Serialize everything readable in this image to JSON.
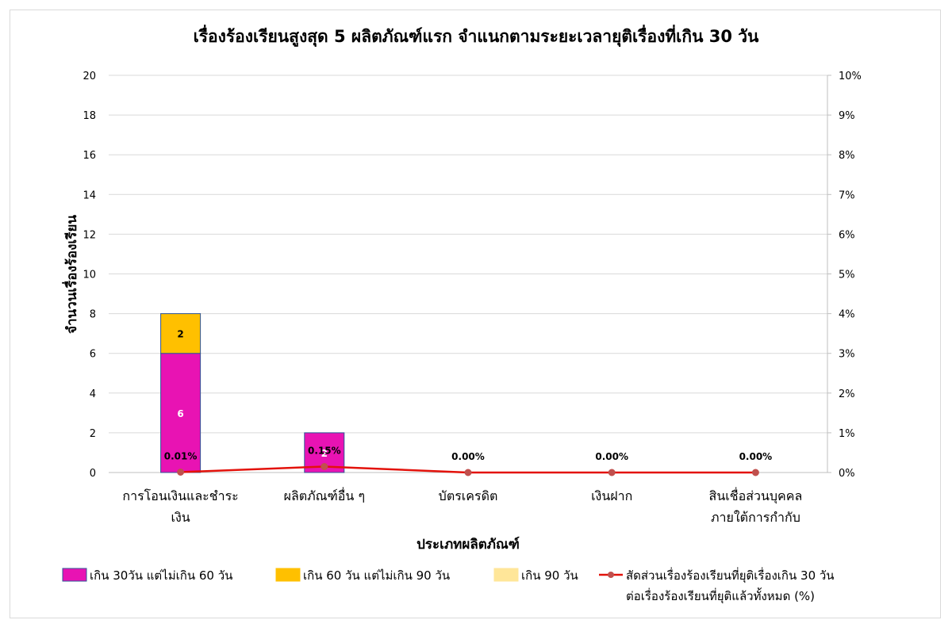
{
  "chart_data": {
    "type": "bar",
    "subtype": "stacked-bar-with-line",
    "title": "เรื่องร้องเรียนสูงสุด 5 ผลิตภัณฑ์แรก จำแนกตามระยะเวลายุติเรื่องที่เกิน 30 วัน",
    "xlabel": "ประเภทผลิตภัณฑ์",
    "ylabel": "จำนวนเรื่องร้องเรียน",
    "ylim": [
      0,
      20
    ],
    "yticks": [
      "0",
      "2",
      "4",
      "6",
      "8",
      "10",
      "12",
      "14",
      "16",
      "18",
      "20"
    ],
    "y2lim": [
      0,
      10
    ],
    "y2ticks": [
      "0%",
      "1%",
      "2%",
      "3%",
      "4%",
      "5%",
      "6%",
      "7%",
      "8%",
      "9%",
      "10%"
    ],
    "grid": true,
    "legend_position": "bottom",
    "categories": [
      [
        "การโอนเงินและชำระ",
        "เงิน"
      ],
      [
        "ผลิตภัณฑ์อื่น ๆ"
      ],
      [
        "บัตรเครดิต"
      ],
      [
        "เงินฝาก"
      ],
      [
        "สินเชื่อส่วนบุคคล",
        "ภายใต้การกำกับ"
      ]
    ],
    "series": [
      {
        "name": "เกิน 30วัน แต่ไม่เกิน 60 วัน",
        "kind": "bar",
        "color": "#e813b3",
        "label_color": "#ffffff",
        "values": [
          6,
          2,
          0,
          0,
          0
        ],
        "labels": [
          "6",
          "2",
          "",
          "",
          ""
        ]
      },
      {
        "name": "เกิน 60 วัน แต่ไม่เกิน 90 วัน",
        "kind": "bar",
        "color": "#ffc000",
        "label_color": "#000000",
        "values": [
          2,
          0,
          0,
          0,
          0
        ],
        "labels": [
          "2",
          "",
          "",
          "",
          ""
        ]
      },
      {
        "name": "เกิน 90 วัน",
        "kind": "bar",
        "color": "#ffe699",
        "label_color": "#000000",
        "values": [
          0,
          0,
          0,
          0,
          0
        ],
        "labels": [
          "",
          "",
          "",
          "",
          ""
        ]
      },
      {
        "name": [
          "สัดส่วนเรื่องร้องเรียนที่ยุติเรื่องเกิน 30 วัน",
          "ต่อเรื่องร้องเรียนที่ยุติแล้วทั้งหมด (%)"
        ],
        "kind": "line",
        "axis": "secondary",
        "color": "#e3120b",
        "marker_color": "#c0504d",
        "values": [
          0.01,
          0.15,
          0.0,
          0.0,
          0.0
        ],
        "labels": [
          "0.01%",
          "0.15%",
          "0.00%",
          "0.00%",
          "0.00%"
        ]
      }
    ]
  }
}
